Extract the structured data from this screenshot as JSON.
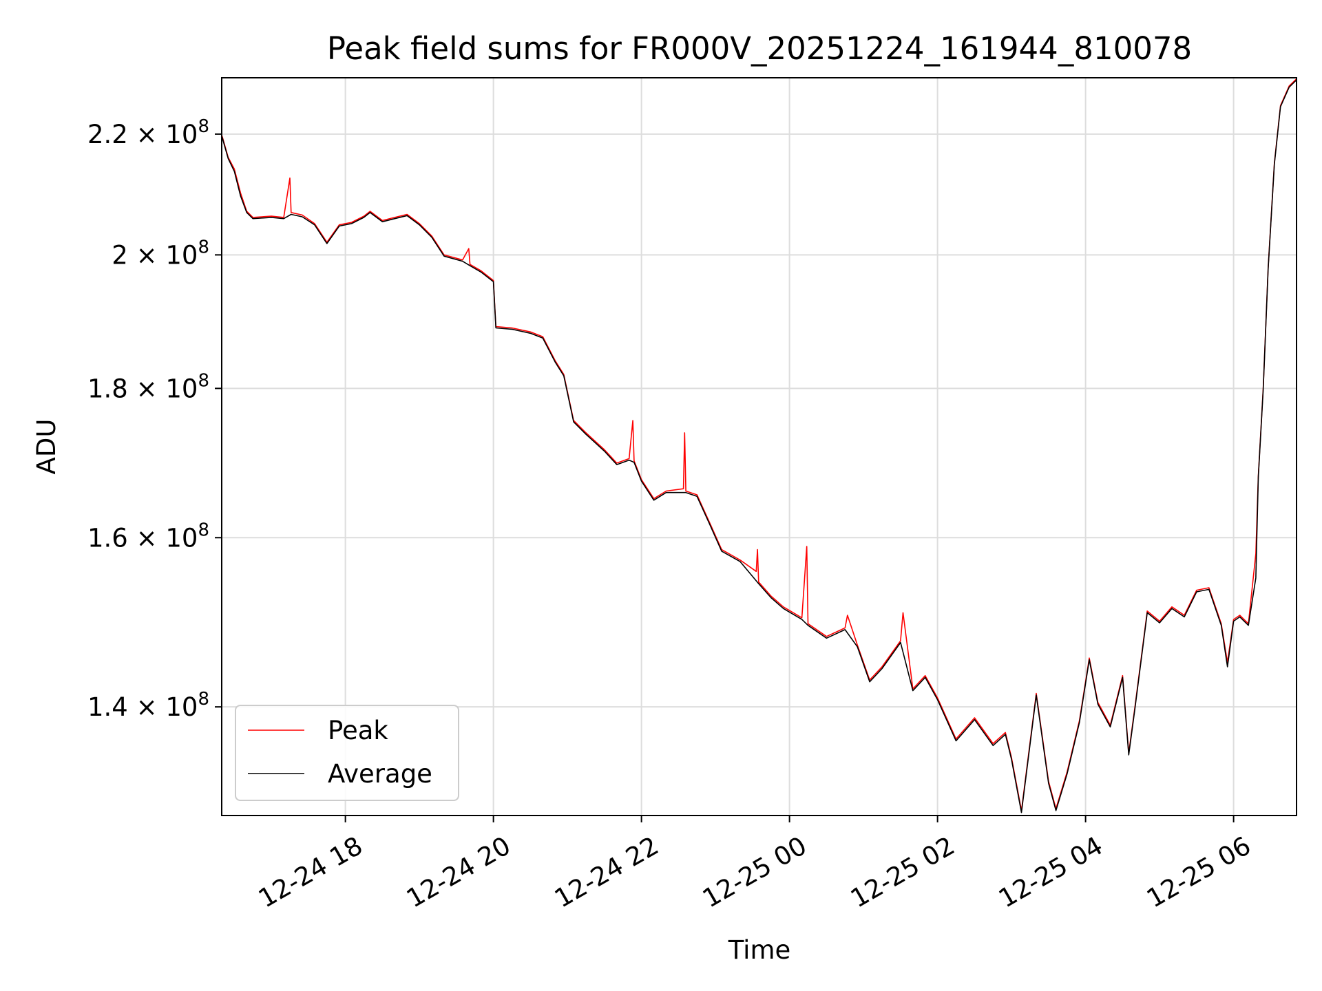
{
  "chart_data": {
    "type": "line",
    "title": "Peak field sums for FR000V_20251224_161944_810078",
    "xlabel": "Time",
    "ylabel": "ADU",
    "x_axis": {
      "type": "datetime",
      "range": [
        "2025-12-24 16:19:44",
        "2025-12-25 06:51:00"
      ],
      "tick_labels": [
        "12-24 18",
        "12-24 20",
        "12-24 22",
        "12-25 00",
        "12-25 02",
        "12-25 04",
        "12-25 06"
      ],
      "ticks": [
        "2025-12-24 18:00",
        "2025-12-24 20:00",
        "2025-12-24 22:00",
        "2025-12-25 00:00",
        "2025-12-25 02:00",
        "2025-12-25 04:00",
        "2025-12-25 06:00"
      ],
      "label_rotation": "30 degrees"
    },
    "y_axis": {
      "scale": "log",
      "range": [
        128500000,
        230000000
      ],
      "ticks": [
        {
          "value": 140000000,
          "mantissa": "1.4",
          "times": "×",
          "base": "10",
          "exp": "8"
        },
        {
          "value": 160000000,
          "mantissa": "1.6",
          "times": "×",
          "base": "10",
          "exp": "8"
        },
        {
          "value": 180000000,
          "mantissa": "1.8",
          "times": "×",
          "base": "10",
          "exp": "8"
        },
        {
          "value": 200000000,
          "mantissa": "2",
          "times": "×",
          "base": "10",
          "exp": "8"
        },
        {
          "value": 220000000,
          "mantissa": "2.2",
          "times": "×",
          "base": "10",
          "exp": "8"
        }
      ]
    },
    "grid": true,
    "legend": {
      "placement": "lower-left"
    },
    "series": [
      {
        "name": "Peak",
        "color": "#ff0000",
        "points": [
          [
            "2025-12-24 16:20",
            219700000
          ],
          [
            "2025-12-24 16:25",
            216000000
          ],
          [
            "2025-12-24 16:30",
            214000000
          ],
          [
            "2025-12-24 16:35",
            210000000
          ],
          [
            "2025-12-24 16:40",
            207000000
          ],
          [
            "2025-12-24 16:45",
            206000000
          ],
          [
            "2025-12-24 17:00",
            206200000
          ],
          [
            "2025-12-24 17:10",
            206000000
          ],
          [
            "2025-12-24 17:15",
            212500000
          ],
          [
            "2025-12-24 17:16",
            206800000
          ],
          [
            "2025-12-24 17:25",
            206400000
          ],
          [
            "2025-12-24 17:35",
            205000000
          ],
          [
            "2025-12-24 17:45",
            202000000
          ],
          [
            "2025-12-24 17:55",
            204800000
          ],
          [
            "2025-12-24 18:05",
            205200000
          ],
          [
            "2025-12-24 18:15",
            206200000
          ],
          [
            "2025-12-24 18:20",
            207000000
          ],
          [
            "2025-12-24 18:30",
            205500000
          ],
          [
            "2025-12-24 18:40",
            206000000
          ],
          [
            "2025-12-24 18:50",
            206500000
          ],
          [
            "2025-12-24 19:00",
            205000000
          ],
          [
            "2025-12-24 19:10",
            203000000
          ],
          [
            "2025-12-24 19:20",
            200000000
          ],
          [
            "2025-12-24 19:35",
            199200000
          ],
          [
            "2025-12-24 19:40",
            201000000
          ],
          [
            "2025-12-24 19:41",
            198500000
          ],
          [
            "2025-12-24 19:50",
            197500000
          ],
          [
            "2025-12-24 20:00",
            196000000
          ],
          [
            "2025-12-24 20:02",
            189000000
          ],
          [
            "2025-12-24 20:15",
            188800000
          ],
          [
            "2025-12-24 20:30",
            188200000
          ],
          [
            "2025-12-24 20:40",
            187500000
          ],
          [
            "2025-12-24 20:50",
            184000000
          ],
          [
            "2025-12-24 20:57",
            182000000
          ],
          [
            "2025-12-24 21:05",
            175500000
          ],
          [
            "2025-12-24 21:15",
            173800000
          ],
          [
            "2025-12-24 21:30",
            171500000
          ],
          [
            "2025-12-24 21:40",
            169700000
          ],
          [
            "2025-12-24 21:50",
            170300000
          ],
          [
            "2025-12-24 21:53",
            175500000
          ],
          [
            "2025-12-24 21:54",
            170000000
          ],
          [
            "2025-12-24 22:00",
            167500000
          ],
          [
            "2025-12-24 22:10",
            165000000
          ],
          [
            "2025-12-24 22:20",
            166000000
          ],
          [
            "2025-12-24 22:34",
            166300000
          ],
          [
            "2025-12-24 22:35",
            173800000
          ],
          [
            "2025-12-24 22:36",
            166000000
          ],
          [
            "2025-12-24 22:45",
            165500000
          ],
          [
            "2025-12-24 22:55",
            162000000
          ],
          [
            "2025-12-24 23:05",
            158500000
          ],
          [
            "2025-12-24 23:20",
            157200000
          ],
          [
            "2025-12-24 23:33",
            155800000
          ],
          [
            "2025-12-24 23:34",
            158500000
          ],
          [
            "2025-12-24 23:35",
            154500000
          ],
          [
            "2025-12-24 23:45",
            152800000
          ],
          [
            "2025-12-24 23:55",
            151500000
          ],
          [
            "2025-12-25 00:10",
            150200000
          ],
          [
            "2025-12-25 00:14",
            158900000
          ],
          [
            "2025-12-25 00:15",
            149500000
          ],
          [
            "2025-12-25 00:30",
            148000000
          ],
          [
            "2025-12-25 00:45",
            149000000
          ],
          [
            "2025-12-25 00:47",
            150500000
          ],
          [
            "2025-12-25 00:55",
            147000000
          ],
          [
            "2025-12-25 01:05",
            143000000
          ],
          [
            "2025-12-25 01:15",
            144500000
          ],
          [
            "2025-12-25 01:30",
            147500000
          ],
          [
            "2025-12-25 01:32",
            150800000
          ],
          [
            "2025-12-25 01:40",
            142000000
          ],
          [
            "2025-12-25 01:50",
            143500000
          ],
          [
            "2025-12-25 02:00",
            141000000
          ],
          [
            "2025-12-25 02:15",
            136500000
          ],
          [
            "2025-12-25 02:30",
            138800000
          ],
          [
            "2025-12-25 02:45",
            136000000
          ],
          [
            "2025-12-25 02:55",
            137200000
          ],
          [
            "2025-12-25 03:00",
            134500000
          ],
          [
            "2025-12-25 03:08",
            129000000
          ],
          [
            "2025-12-25 03:20",
            141500000
          ],
          [
            "2025-12-25 03:30",
            132000000
          ],
          [
            "2025-12-25 03:36",
            129200000
          ],
          [
            "2025-12-25 03:45",
            133000000
          ],
          [
            "2025-12-25 03:55",
            138500000
          ],
          [
            "2025-12-25 04:03",
            145500000
          ],
          [
            "2025-12-25 04:10",
            140500000
          ],
          [
            "2025-12-25 04:20",
            138000000
          ],
          [
            "2025-12-25 04:30",
            143500000
          ],
          [
            "2025-12-25 04:35",
            135000000
          ],
          [
            "2025-12-25 04:40",
            140000000
          ],
          [
            "2025-12-25 04:50",
            151000000
          ],
          [
            "2025-12-25 05:00",
            149800000
          ],
          [
            "2025-12-25 05:10",
            151500000
          ],
          [
            "2025-12-25 05:20",
            150500000
          ],
          [
            "2025-12-25 05:30",
            153500000
          ],
          [
            "2025-12-25 05:40",
            153800000
          ],
          [
            "2025-12-25 05:50",
            149500000
          ],
          [
            "2025-12-25 05:55",
            145000000
          ],
          [
            "2025-12-25 06:00",
            150000000
          ],
          [
            "2025-12-25 06:05",
            150500000
          ],
          [
            "2025-12-25 06:12",
            149500000
          ],
          [
            "2025-12-25 06:18",
            158000000
          ],
          [
            "2025-12-25 06:20",
            168000000
          ],
          [
            "2025-12-25 06:24",
            180000000
          ],
          [
            "2025-12-25 06:28",
            198000000
          ],
          [
            "2025-12-25 06:33",
            215000000
          ],
          [
            "2025-12-25 06:38",
            225000000
          ],
          [
            "2025-12-25 06:45",
            228500000
          ],
          [
            "2025-12-25 06:51",
            229800000
          ]
        ]
      },
      {
        "name": "Average",
        "color": "#000000",
        "points": [
          [
            "2025-12-24 16:20",
            219500000
          ],
          [
            "2025-12-24 16:25",
            215800000
          ],
          [
            "2025-12-24 16:30",
            213600000
          ],
          [
            "2025-12-24 16:35",
            209500000
          ],
          [
            "2025-12-24 16:40",
            206800000
          ],
          [
            "2025-12-24 16:45",
            205800000
          ],
          [
            "2025-12-24 17:00",
            206000000
          ],
          [
            "2025-12-24 17:10",
            205800000
          ],
          [
            "2025-12-24 17:16",
            206500000
          ],
          [
            "2025-12-24 17:25",
            206100000
          ],
          [
            "2025-12-24 17:35",
            204800000
          ],
          [
            "2025-12-24 17:45",
            201800000
          ],
          [
            "2025-12-24 17:55",
            204600000
          ],
          [
            "2025-12-24 18:05",
            205000000
          ],
          [
            "2025-12-24 18:15",
            206000000
          ],
          [
            "2025-12-24 18:20",
            206800000
          ],
          [
            "2025-12-24 18:30",
            205300000
          ],
          [
            "2025-12-24 18:40",
            205800000
          ],
          [
            "2025-12-24 18:50",
            206300000
          ],
          [
            "2025-12-24 19:00",
            204800000
          ],
          [
            "2025-12-24 19:10",
            202800000
          ],
          [
            "2025-12-24 19:20",
            199800000
          ],
          [
            "2025-12-24 19:35",
            199000000
          ],
          [
            "2025-12-24 19:41",
            198300000
          ],
          [
            "2025-12-24 19:50",
            197300000
          ],
          [
            "2025-12-24 20:00",
            195800000
          ],
          [
            "2025-12-24 20:02",
            188800000
          ],
          [
            "2025-12-24 20:15",
            188600000
          ],
          [
            "2025-12-24 20:30",
            188000000
          ],
          [
            "2025-12-24 20:40",
            187300000
          ],
          [
            "2025-12-24 20:50",
            183800000
          ],
          [
            "2025-12-24 20:57",
            181800000
          ],
          [
            "2025-12-24 21:05",
            175300000
          ],
          [
            "2025-12-24 21:15",
            173600000
          ],
          [
            "2025-12-24 21:30",
            171300000
          ],
          [
            "2025-12-24 21:40",
            169500000
          ],
          [
            "2025-12-24 21:50",
            170100000
          ],
          [
            "2025-12-24 21:54",
            169800000
          ],
          [
            "2025-12-24 22:00",
            167300000
          ],
          [
            "2025-12-24 22:10",
            164800000
          ],
          [
            "2025-12-24 22:20",
            165800000
          ],
          [
            "2025-12-24 22:36",
            165800000
          ],
          [
            "2025-12-24 22:45",
            165300000
          ],
          [
            "2025-12-24 22:55",
            161800000
          ],
          [
            "2025-12-24 23:05",
            158300000
          ],
          [
            "2025-12-24 23:20",
            157000000
          ],
          [
            "2025-12-24 23:35",
            154300000
          ],
          [
            "2025-12-24 23:45",
            152600000
          ],
          [
            "2025-12-24 23:55",
            151300000
          ],
          [
            "2025-12-25 00:10",
            150000000
          ],
          [
            "2025-12-25 00:15",
            149300000
          ],
          [
            "2025-12-25 00:30",
            147800000
          ],
          [
            "2025-12-25 00:45",
            148800000
          ],
          [
            "2025-12-25 00:55",
            146800000
          ],
          [
            "2025-12-25 01:05",
            142800000
          ],
          [
            "2025-12-25 01:15",
            144300000
          ],
          [
            "2025-12-25 01:30",
            147300000
          ],
          [
            "2025-12-25 01:40",
            141800000
          ],
          [
            "2025-12-25 01:50",
            143300000
          ],
          [
            "2025-12-25 02:00",
            140800000
          ],
          [
            "2025-12-25 02:15",
            136300000
          ],
          [
            "2025-12-25 02:30",
            138600000
          ],
          [
            "2025-12-25 02:45",
            135800000
          ],
          [
            "2025-12-25 02:55",
            137000000
          ],
          [
            "2025-12-25 03:00",
            134300000
          ],
          [
            "2025-12-25 03:08",
            128800000
          ],
          [
            "2025-12-25 03:20",
            141300000
          ],
          [
            "2025-12-25 03:30",
            131800000
          ],
          [
            "2025-12-25 03:36",
            129000000
          ],
          [
            "2025-12-25 03:45",
            132800000
          ],
          [
            "2025-12-25 03:55",
            138300000
          ],
          [
            "2025-12-25 04:03",
            145300000
          ],
          [
            "2025-12-25 04:10",
            140300000
          ],
          [
            "2025-12-25 04:20",
            137800000
          ],
          [
            "2025-12-25 04:30",
            143300000
          ],
          [
            "2025-12-25 04:35",
            134800000
          ],
          [
            "2025-12-25 04:40",
            139800000
          ],
          [
            "2025-12-25 04:50",
            150800000
          ],
          [
            "2025-12-25 05:00",
            149600000
          ],
          [
            "2025-12-25 05:10",
            151300000
          ],
          [
            "2025-12-25 05:20",
            150300000
          ],
          [
            "2025-12-25 05:30",
            153300000
          ],
          [
            "2025-12-25 05:40",
            153600000
          ],
          [
            "2025-12-25 05:50",
            149300000
          ],
          [
            "2025-12-25 05:55",
            144500000
          ],
          [
            "2025-12-25 06:00",
            149800000
          ],
          [
            "2025-12-25 06:05",
            150300000
          ],
          [
            "2025-12-25 06:12",
            149300000
          ],
          [
            "2025-12-25 06:18",
            155000000
          ],
          [
            "2025-12-25 06:20",
            167800000
          ],
          [
            "2025-12-25 06:24",
            179800000
          ],
          [
            "2025-12-25 06:28",
            197800000
          ],
          [
            "2025-12-25 06:33",
            214800000
          ],
          [
            "2025-12-25 06:38",
            224800000
          ],
          [
            "2025-12-25 06:45",
            228300000
          ],
          [
            "2025-12-25 06:51",
            229600000
          ]
        ]
      }
    ]
  }
}
